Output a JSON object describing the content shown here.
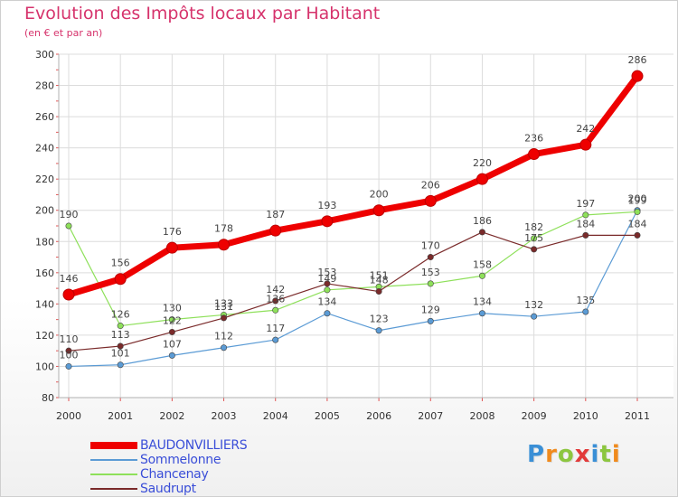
{
  "title": "Evolution des Impôts locaux par Habitant",
  "subtitle": "(en € et par an)",
  "logo": {
    "text": "Proxiti",
    "letter_colors": [
      "#3a8fd6",
      "#f08a1c",
      "#8cc63f",
      "#e23a3a",
      "#3a8fd6",
      "#8cc63f",
      "#f08a1c"
    ]
  },
  "chart_data": {
    "type": "line",
    "x": [
      2000,
      2001,
      2002,
      2003,
      2004,
      2005,
      2006,
      2007,
      2008,
      2009,
      2010,
      2011
    ],
    "ylim": [
      80,
      300
    ],
    "yticks": [
      80,
      100,
      120,
      140,
      160,
      180,
      200,
      220,
      240,
      260,
      280,
      300
    ],
    "grid": true,
    "legend_position": "bottom-left",
    "series": [
      {
        "name": "BAUDONVILLIERS",
        "color": "#ee0000",
        "values": [
          146,
          156,
          176,
          178,
          187,
          193,
          200,
          206,
          220,
          236,
          242,
          286
        ]
      },
      {
        "name": "Sommelonne",
        "color": "#5b9bd5",
        "values": [
          100,
          101,
          107,
          112,
          117,
          134,
          123,
          129,
          134,
          132,
          135,
          200
        ]
      },
      {
        "name": "Chancenay",
        "color": "#8ee05a",
        "values": [
          190,
          126,
          130,
          133,
          136,
          149,
          151,
          153,
          158,
          182,
          197,
          199
        ]
      },
      {
        "name": "Saudrupt",
        "color": "#7a2a2a",
        "values": [
          110,
          113,
          122,
          131,
          142,
          153,
          148,
          170,
          186,
          175,
          184,
          184
        ]
      }
    ]
  }
}
